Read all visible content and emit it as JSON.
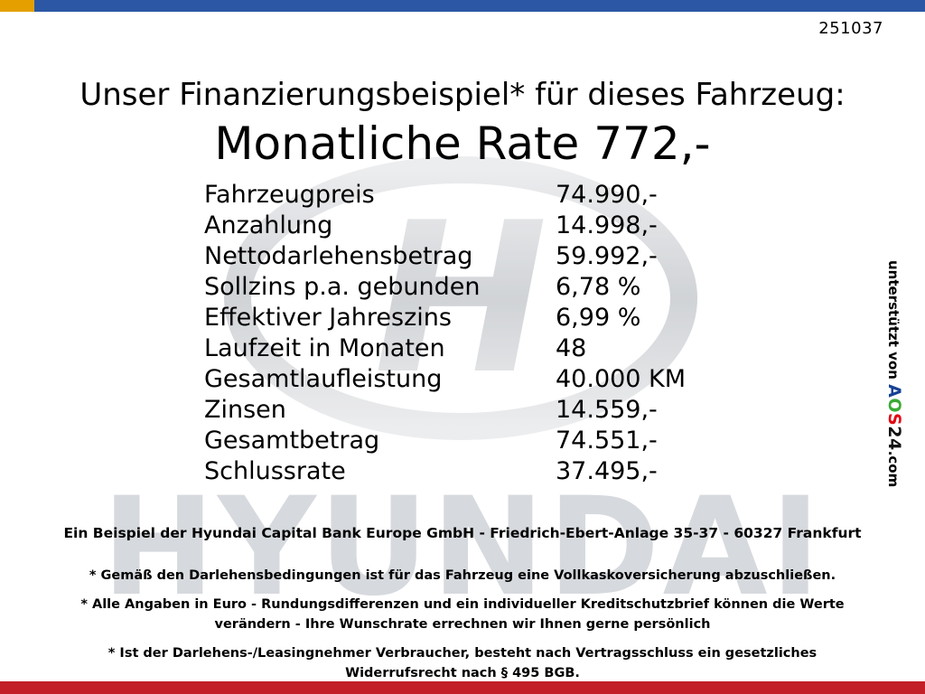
{
  "page": {
    "doc_number": "251037",
    "headline": "Unser Finanzierungsbeispiel* für dieses Fahrzeug:",
    "subheadline": "Monatliche Rate 772,-"
  },
  "finance_table": {
    "rows": [
      {
        "label": "Fahrzeugpreis",
        "value": "74.990,-"
      },
      {
        "label": "Anzahlung",
        "value": "14.998,-"
      },
      {
        "label": "Nettodarlehensbetrag",
        "value": "59.992,-"
      },
      {
        "label": "Sollzins p.a. gebunden",
        "value": "6,78 %"
      },
      {
        "label": "Effektiver Jahreszins",
        "value": "6,99 %"
      },
      {
        "label": "Laufzeit in Monaten",
        "value": "48"
      },
      {
        "label": "Gesamtlaufleistung",
        "value": "40.000 KM"
      },
      {
        "label": "Zinsen",
        "value": "14.559,-"
      },
      {
        "label": "Gesamtbetrag",
        "value": "74.551,-"
      },
      {
        "label": "Schlussrate",
        "value": "37.495,-"
      }
    ]
  },
  "side_banner": {
    "prefix": "unterstützt von ",
    "brand_letters": [
      {
        "char": "A",
        "color": "#164194"
      },
      {
        "char": "O",
        "color": "#3aaa35"
      },
      {
        "char": "S",
        "color": "#e30613"
      },
      {
        "char": "2",
        "color": "#111111"
      },
      {
        "char": "4",
        "color": "#111111"
      }
    ],
    "suffix": ".com"
  },
  "watermark": {
    "wordmark": "HYUNDAI"
  },
  "footer": {
    "bank_line": "Ein Beispiel der Hyundai Capital Bank Europe GmbH - Friedrich-Ebert-Anlage 35-37 - 60327 Frankfurt",
    "note1": "* Gemäß den Darlehensbedingungen ist für das Fahrzeug eine Vollkaskoversicherung abzuschließen.",
    "note2": "* Alle Angaben in Euro - Rundungsdifferenzen und ein individueller Kreditschutzbrief können die Werte verändern - Ihre Wunschrate errechnen wir Ihnen gerne persönlich",
    "note3": "* Ist der Darlehens-/Leasingnehmer Verbraucher, besteht nach Vertragsschluss ein gesetzliches Widerrufsrecht nach § 495 BGB."
  },
  "colors": {
    "top_bar_blue": "#2b57a5",
    "top_bar_yellow": "#e5a000",
    "bottom_bar_red": "#c22026",
    "watermark_gray": "#d6d9dd"
  }
}
